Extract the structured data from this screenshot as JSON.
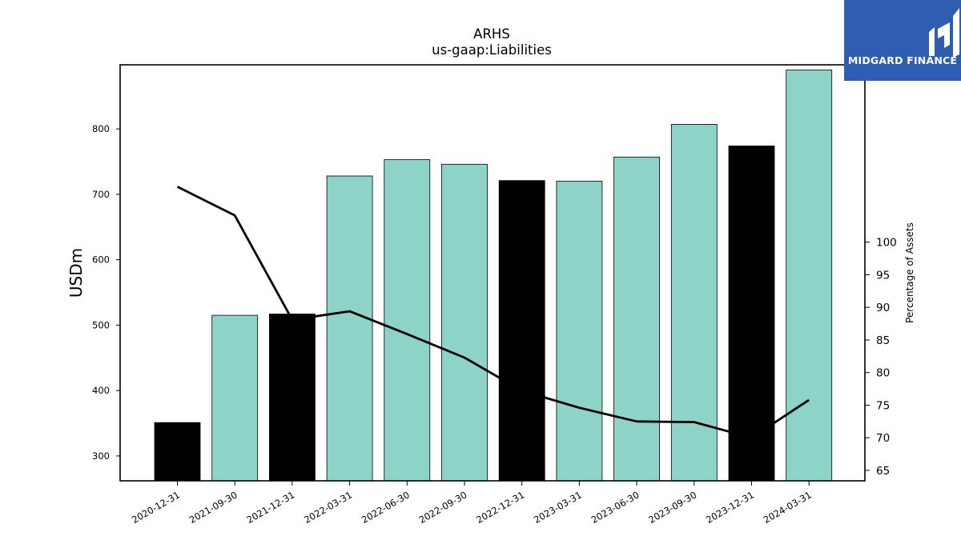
{
  "chart_data": {
    "type": "bar+line",
    "title": "ARHS",
    "subtitle": "us-gaap:Liabilities",
    "ylabel": "USDm",
    "y2label": "Percentage of Assets",
    "categories": [
      "2020-12-31",
      "2021-09-30",
      "2021-12-31",
      "2022-03-31",
      "2022-06-30",
      "2022-09-30",
      "2022-12-31",
      "2023-03-31",
      "2023-06-30",
      "2023-09-30",
      "2023-12-31",
      "2024-03-31"
    ],
    "bars": {
      "values": [
        351,
        515,
        517,
        728,
        753,
        746,
        721,
        720,
        757,
        807,
        774,
        890
      ],
      "colors": [
        "#000000",
        "#8dd3c7",
        "#000000",
        "#8dd3c7",
        "#8dd3c7",
        "#8dd3c7",
        "#000000",
        "#8dd3c7",
        "#8dd3c7",
        "#8dd3c7",
        "#000000",
        "#8dd3c7"
      ]
    },
    "line": {
      "values": [
        108.5,
        104.1,
        88.1,
        89.4,
        85.9,
        82.3,
        77.2,
        74.6,
        72.5,
        72.4,
        70.0,
        75.8
      ],
      "color": "#000000"
    },
    "ylim": [
      262,
      898
    ],
    "y2lim": [
      63.4,
      127.2
    ],
    "yticks": [
      300,
      400,
      500,
      600,
      700,
      800
    ],
    "y2ticks": [
      65,
      70,
      75,
      80,
      85,
      90,
      95,
      100
    ]
  },
  "logo": {
    "text": "MIDGARD FINANCE",
    "color": "#2f5db1"
  }
}
